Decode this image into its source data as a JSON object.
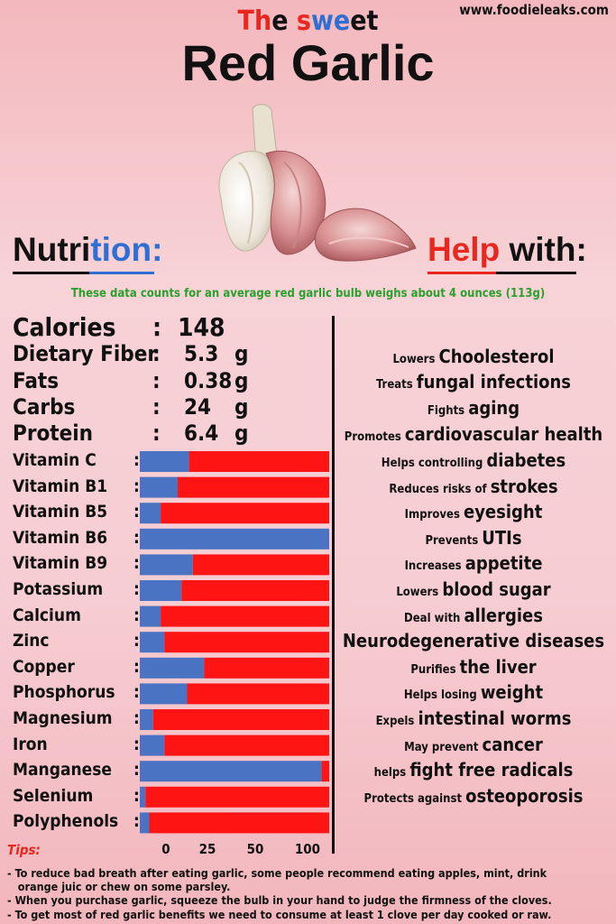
{
  "site": "www.foodieleaks.com",
  "title_top_parts": [
    {
      "text": "Th",
      "color": "#e8281e"
    },
    {
      "text": "e ",
      "color": "#111111"
    },
    {
      "text": "s",
      "color": "#e8281e"
    },
    {
      "text": "we",
      "color": "#2f6fd3"
    },
    {
      "text": "et",
      "color": "#111111"
    }
  ],
  "title_main": "Red Garlic",
  "nutrition_heading": {
    "part1": "Nutri",
    "part2": "tion:"
  },
  "help_heading": {
    "part1": "Help",
    "part2": " with:"
  },
  "note": "These data counts for an average red garlic bulb weighs about 4 ounces (113g)",
  "macros": [
    {
      "label": "Calories",
      "value": "148",
      "unit": ""
    },
    {
      "label": "Dietary Fiber",
      "value": "5.3",
      "unit": "g"
    },
    {
      "label": "Fats",
      "value": "0.38",
      "unit": "g"
    },
    {
      "label": "Carbs",
      "value": "24",
      "unit": "g"
    },
    {
      "label": "Protein",
      "value": "6.4",
      "unit": "g"
    }
  ],
  "help_items": [
    {
      "small": "Lowers ",
      "big": "Choolesterol"
    },
    {
      "small": "Treats ",
      "big": "fungal infections"
    },
    {
      "small": "Fights ",
      "big": "aging"
    },
    {
      "small": "Promotes ",
      "big": "cardiovascular health"
    },
    {
      "small": "Helps controlling ",
      "big": "diabetes"
    },
    {
      "small": "Reduces risks of ",
      "big": "strokes"
    },
    {
      "small": "Improves ",
      "big": "eyesight"
    },
    {
      "small": "Prevents ",
      "big": "UTIs"
    },
    {
      "small": "Increases ",
      "big": "appetite"
    },
    {
      "small": "Lowers ",
      "big": "blood sugar"
    },
    {
      "small": "Deal with ",
      "big": "allergies"
    },
    {
      "small": "",
      "big": "Neurodegenerative diseases"
    },
    {
      "small": "Purifies ",
      "big": "the liver"
    },
    {
      "small": "Helps losing ",
      "big": "weight"
    },
    {
      "small": "Expels ",
      "big": "intestinal worms"
    },
    {
      "small": "May prevent ",
      "big": "cancer"
    },
    {
      "small": "helps ",
      "big": "fight free radicals"
    },
    {
      "small": "Protects against ",
      "big": "osteoporosis"
    }
  ],
  "chart_data": {
    "type": "bar",
    "orientation": "horizontal",
    "stacked": true,
    "categories": [
      "Vitamin C",
      "Vitamin B1",
      "Vitamin B5",
      "Vitamin B6",
      "Vitamin B9",
      "Potassium",
      "Calcium",
      "Zinc",
      "Copper",
      "Phosphorus",
      "Magnesium",
      "Iron",
      "Manganese",
      "Selenium",
      "Polyphenols"
    ],
    "series": [
      {
        "color": "#4a73c4",
        "values": [
          26,
          20,
          11,
          100,
          28,
          22,
          11,
          13,
          34,
          25,
          7,
          13,
          96,
          3,
          5
        ]
      },
      {
        "color": "#ff1414",
        "values": [
          74,
          80,
          89,
          0,
          72,
          78,
          89,
          87,
          66,
          75,
          93,
          87,
          4,
          97,
          95
        ]
      }
    ],
    "xticks": [
      0,
      25,
      50,
      100
    ],
    "xlim": [
      0,
      100
    ]
  },
  "tips": {
    "title": "Tips:",
    "items": [
      "- To reduce bad breath after eating garlic, some people recommend eating apples, mint, drink",
      "   orange juic or chew on some parsley.",
      "- When you purchase garlic, squeeze the bulb in your hand to judge the firmness of the cloves.",
      "- To get most of red garlic benefits we need to consume at least 1 clove per day cooked or raw."
    ]
  }
}
